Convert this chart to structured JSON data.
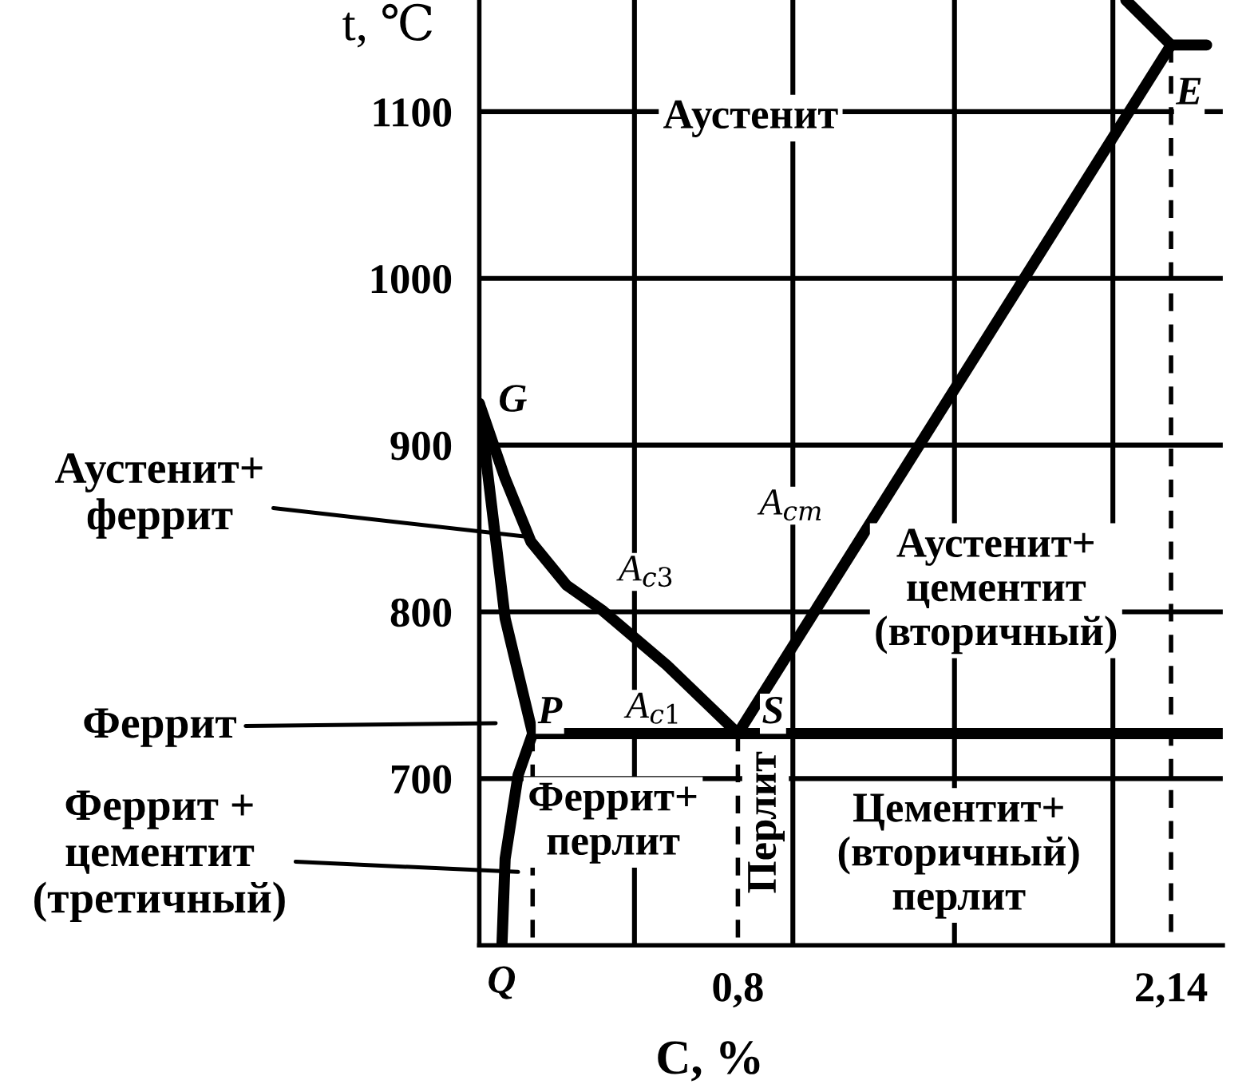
{
  "chart_data": {
    "type": "line",
    "xlabel": "C, %",
    "ylabel": "t, ℃",
    "xlim": [
      0,
      2.3
    ],
    "ylim": [
      600,
      1167
    ],
    "xticks": [
      {
        "value": 0.8,
        "label": "0,8"
      },
      {
        "value": 2.14,
        "label": "2,14"
      }
    ],
    "yticks": [
      700,
      800,
      900,
      1000,
      1100
    ],
    "grid": "y",
    "marker": "none",
    "series": [
      {
        "color": "#000000",
        "line_style": "solid",
        "x": [
          0,
          0.08,
          0.16,
          0.27,
          0.38,
          0.58,
          0.8
        ],
        "values": [
          925,
          880,
          842,
          816,
          801,
          768,
          727
        ]
      },
      {
        "color": "#000000",
        "line_style": "solid",
        "x": [
          0,
          0.08,
          0.165
        ],
        "values": [
          925,
          796,
          727
        ]
      },
      {
        "color": "#000000",
        "line_style": "solid",
        "x": [
          0.165,
          0.12,
          0.08,
          0.07
        ],
        "values": [
          727,
          702,
          652,
          600
        ]
      },
      {
        "color": "#000000",
        "line_style": "solid",
        "x": [
          0.165,
          2.3
        ],
        "values": [
          727,
          727
        ]
      },
      {
        "color": "#000000",
        "line_style": "solid",
        "x": [
          0.8,
          2.14
        ],
        "values": [
          727,
          1140
        ]
      },
      {
        "color": "#000000",
        "line_style": "solid",
        "x": [
          2.0,
          2.14,
          2.25
        ],
        "values": [
          1167,
          1140,
          1140
        ]
      },
      {
        "color": "#000000",
        "line_style": "dashed",
        "x": [
          0.165,
          0.165
        ],
        "values": [
          727,
          600
        ]
      },
      {
        "color": "#000000",
        "line_style": "dashed",
        "x": [
          0.8,
          0.8
        ],
        "values": [
          727,
          600
        ]
      },
      {
        "color": "#000000",
        "line_style": "dashed",
        "x": [
          2.14,
          2.14
        ],
        "values": [
          1140,
          600
        ]
      }
    ],
    "ref_lines": [
      {
        "axis": "x",
        "value": 0.48,
        "label": null,
        "color": "#000000"
      },
      {
        "axis": "x",
        "value": 0.97,
        "label": null,
        "color": "#000000"
      },
      {
        "axis": "x",
        "value": 1.47,
        "label": null,
        "color": "#000000"
      },
      {
        "axis": "x",
        "value": 1.96,
        "label": null,
        "color": "#000000"
      }
    ],
    "annotations": [
      "Аустенит",
      "G",
      "P",
      "S",
      "E",
      "Q",
      "A$_{c3}$",
      "A$_{c1}$",
      "A$_{cm}$",
      "Аустенит+\nцементит\n(вторичный)",
      "Феррит+\nперлит",
      "Перлит",
      "Цементит+\n(вторичный)\nперлит",
      {
        "text": "Аустенит+\nферрит",
        "x": 0.15,
        "y": 845
      },
      "Феррит",
      {
        "text": "Феррит +\nцементит\n(третичный)",
        "x": 0.12,
        "y": 644
      }
    ]
  }
}
